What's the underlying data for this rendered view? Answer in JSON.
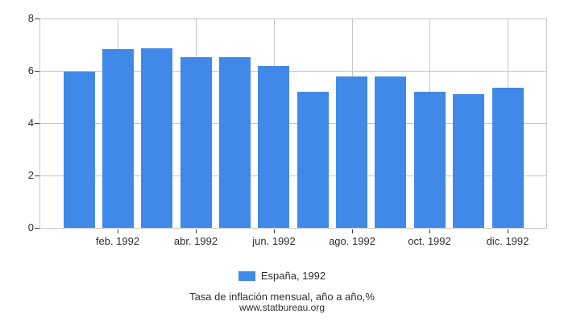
{
  "chart_data": {
    "type": "bar",
    "title": "Tasa de inflación mensual, año a año,%",
    "source": "www.statbureau.org",
    "series": [
      {
        "name": "España, 1992",
        "color": "#4189e8",
        "values": [
          5.98,
          6.84,
          6.86,
          6.53,
          6.51,
          6.19,
          5.21,
          5.79,
          5.79,
          5.21,
          5.12,
          5.36
        ]
      }
    ],
    "x_tick_labels": [
      "feb. 1992",
      "abr. 1992",
      "jun. 1992",
      "ago. 1992",
      "oct. 1992",
      "dic. 1992"
    ],
    "x_tick_bar_indices": [
      1,
      3,
      5,
      7,
      9,
      11
    ],
    "yticks": [
      0,
      2,
      4,
      6,
      8
    ],
    "ylim": [
      0,
      8
    ],
    "grid": true,
    "legend_position": "bottom",
    "colors": {
      "bar": "#4189e8",
      "grid": "#c6c6c6",
      "tick": "#3a3a3a",
      "text": "#2e2e2e"
    }
  }
}
